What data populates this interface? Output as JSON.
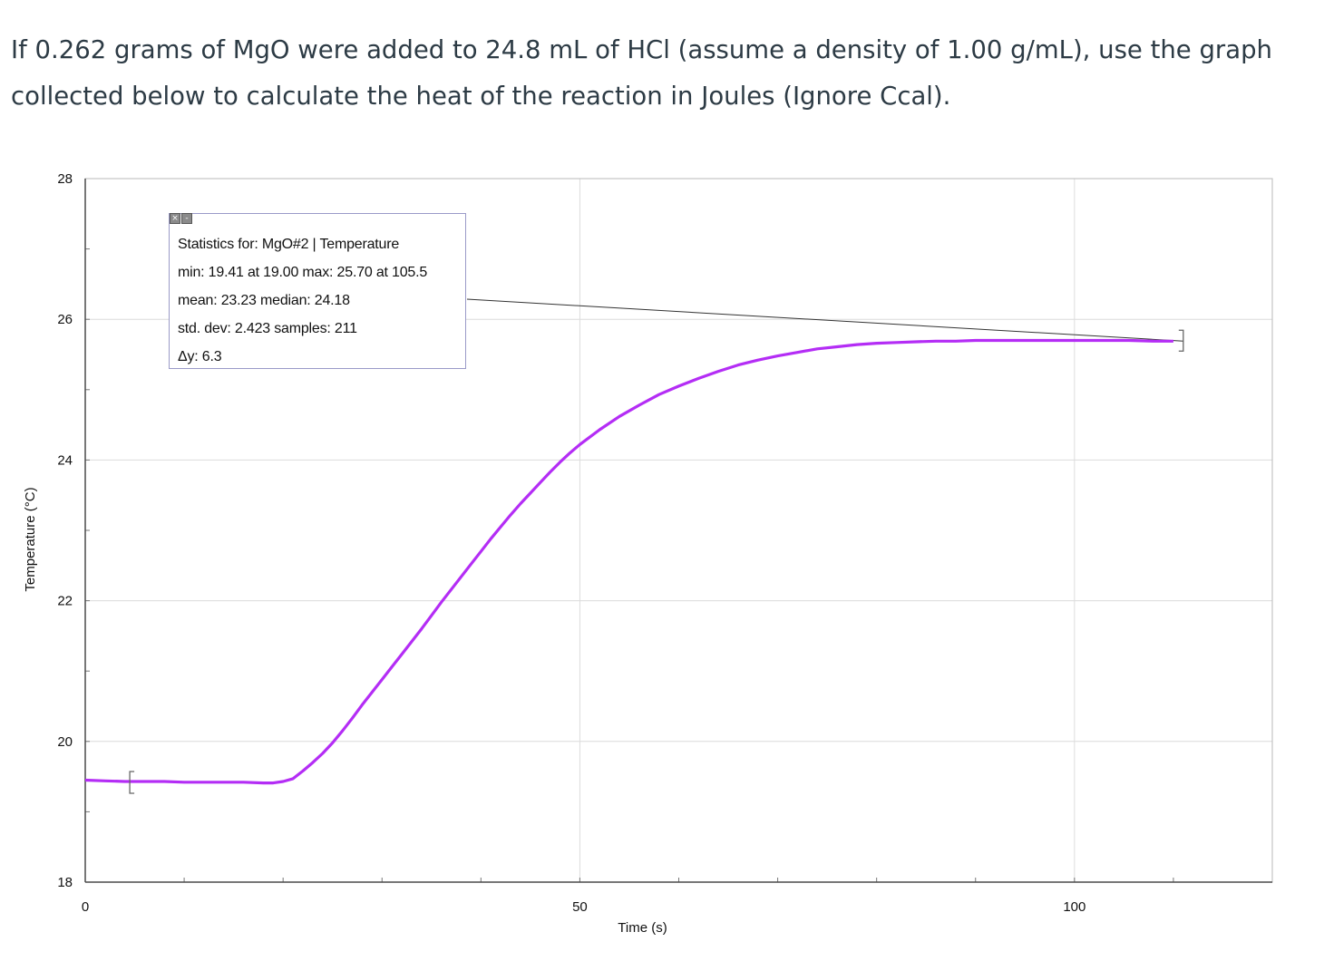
{
  "question": {
    "line1": "If 0.262 grams of MgO were added to 24.8 mL of HCl (assume a density of 1.00 g/mL), use the graph",
    "line2": "collected below to calculate the heat of the reaction in Joules (Ignore Ccal)."
  },
  "stats": {
    "close_icon": "close-icon",
    "minimize_icon": "minimize-icon",
    "title": "Statistics for: MgO#2 | Temperature",
    "minmax": "min: 19.41 at 19.00 max: 25.70 at 105.5",
    "mean_median": "mean: 23.23 median: 24.18",
    "stddev_samples": "std. dev: 2.423 samples: 211",
    "delta_y": "Δy: 6.3"
  },
  "chart_data": {
    "type": "line",
    "xlabel": "Time (s)",
    "ylabel": "Temperature (°C)",
    "xlim": [
      0,
      120
    ],
    "ylim": [
      18,
      28
    ],
    "x_ticks": [
      0,
      50,
      100
    ],
    "y_ticks": [
      18,
      20,
      22,
      24,
      26,
      28
    ],
    "grid": true,
    "series_color": "#b42df5",
    "selection_range": [
      4.5,
      111
    ],
    "x": [
      0,
      2,
      4,
      6,
      8,
      10,
      12,
      14,
      16,
      18,
      19,
      20,
      21,
      22,
      23,
      24,
      25,
      26,
      27,
      28,
      29,
      30,
      31,
      32,
      33,
      34,
      35,
      36,
      37,
      38,
      39,
      40,
      41,
      42,
      43,
      44,
      45,
      46,
      47,
      48,
      49,
      50,
      52,
      54,
      56,
      58,
      60,
      62,
      64,
      66,
      68,
      70,
      72,
      74,
      76,
      78,
      80,
      82,
      84,
      86,
      88,
      90,
      92,
      94,
      96,
      98,
      100,
      102,
      104,
      105.5,
      108,
      110
    ],
    "y": [
      19.45,
      19.44,
      19.43,
      19.43,
      19.43,
      19.42,
      19.42,
      19.42,
      19.42,
      19.41,
      19.41,
      19.43,
      19.47,
      19.58,
      19.7,
      19.83,
      19.98,
      20.15,
      20.33,
      20.52,
      20.7,
      20.88,
      21.06,
      21.24,
      21.42,
      21.6,
      21.79,
      21.98,
      22.16,
      22.34,
      22.52,
      22.7,
      22.88,
      23.05,
      23.22,
      23.38,
      23.53,
      23.68,
      23.83,
      23.97,
      24.1,
      24.22,
      24.43,
      24.62,
      24.78,
      24.93,
      25.05,
      25.16,
      25.26,
      25.35,
      25.42,
      25.48,
      25.53,
      25.58,
      25.61,
      25.64,
      25.66,
      25.67,
      25.68,
      25.69,
      25.69,
      25.7,
      25.7,
      25.7,
      25.7,
      25.7,
      25.7,
      25.7,
      25.7,
      25.7,
      25.69,
      25.69
    ]
  }
}
